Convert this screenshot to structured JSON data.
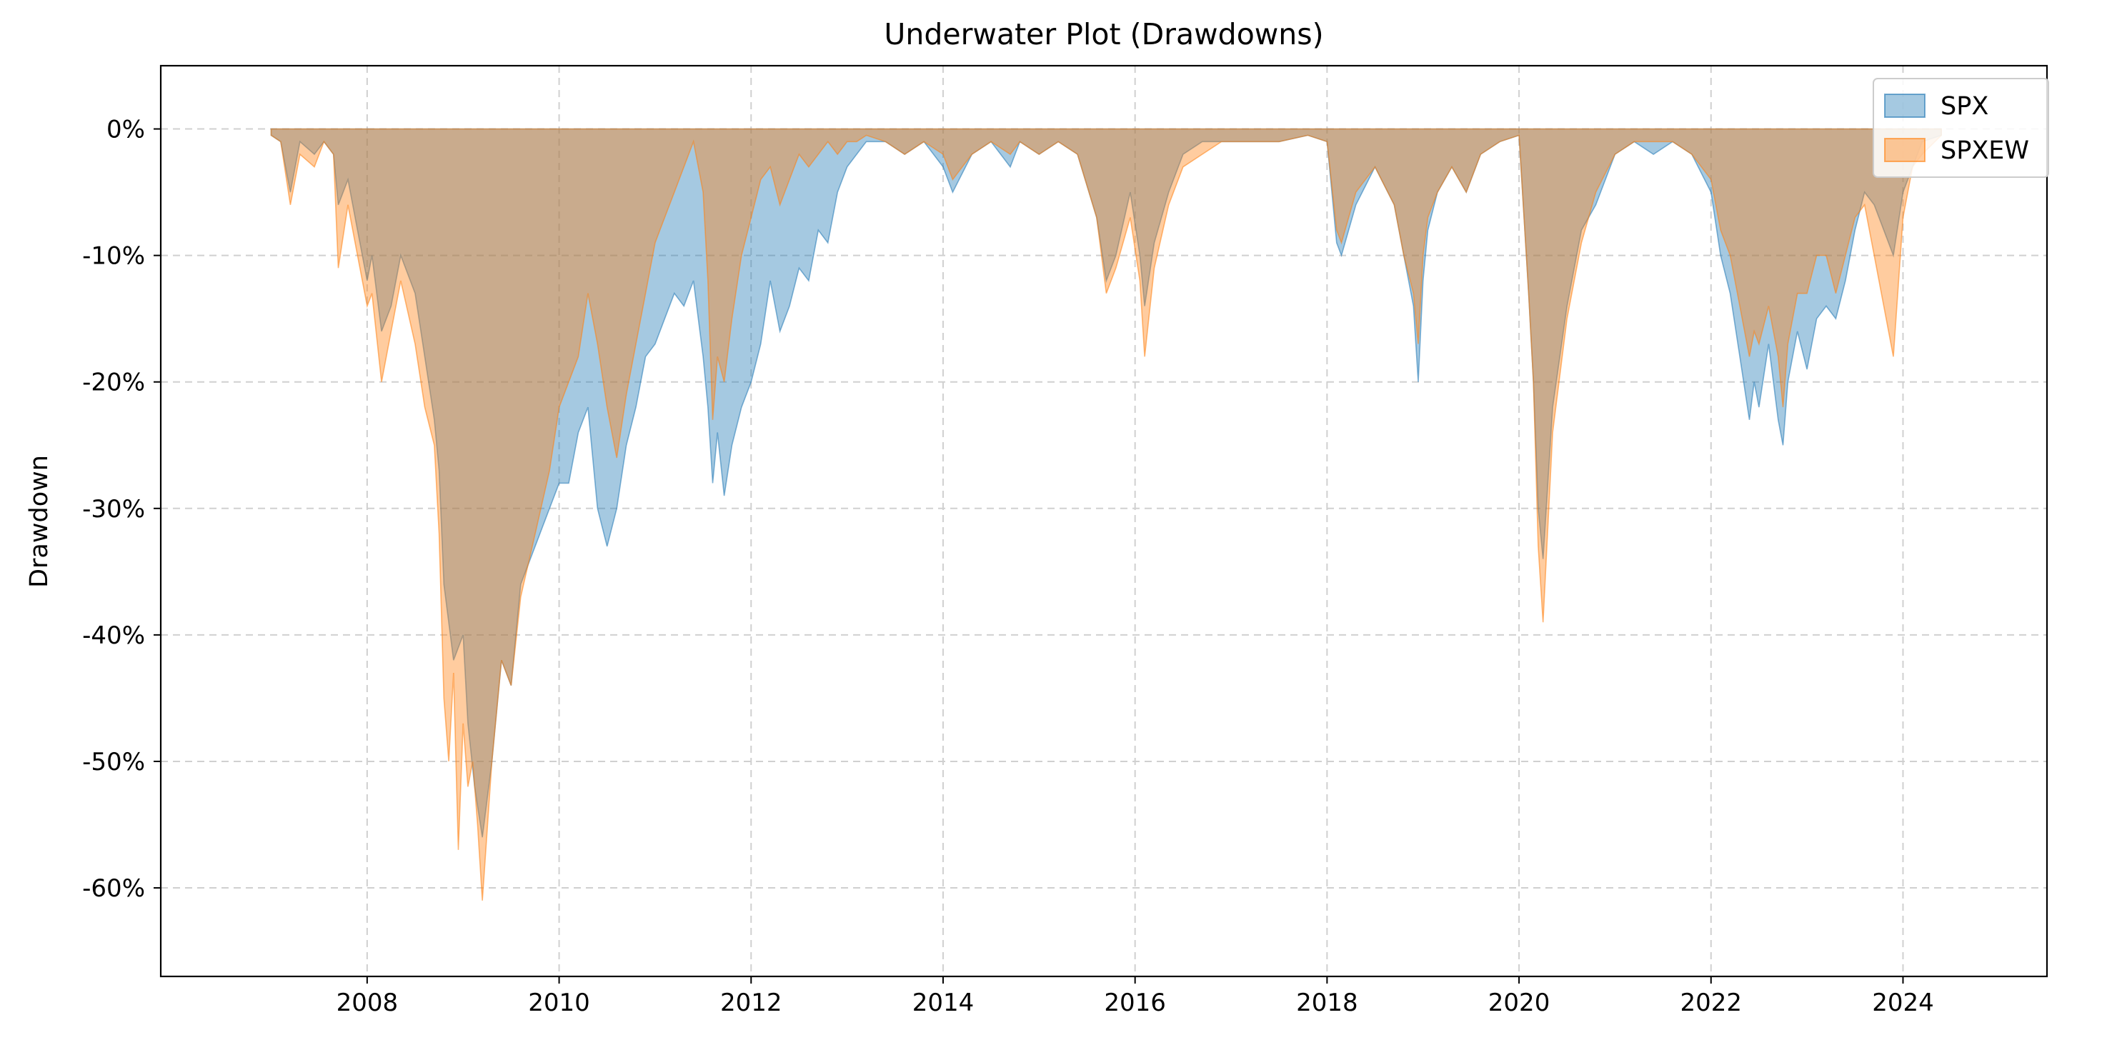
{
  "chart_data": {
    "type": "area",
    "title": "Underwater Plot (Drawdowns)",
    "xlabel": "",
    "ylabel": "Drawdown",
    "xlim": [
      2005.85,
      2025.5
    ],
    "ylim": [
      -0.67,
      0.05
    ],
    "x_ticks": [
      2008,
      2010,
      2012,
      2014,
      2016,
      2018,
      2020,
      2022,
      2024
    ],
    "x_tick_labels": [
      "2008",
      "2010",
      "2012",
      "2014",
      "2016",
      "2018",
      "2020",
      "2022",
      "2024"
    ],
    "y_ticks": [
      0,
      -0.1,
      -0.2,
      -0.3,
      -0.4,
      -0.5,
      -0.6
    ],
    "y_tick_labels": [
      "0%",
      "-10%",
      "-20%",
      "-30%",
      "-40%",
      "-50%",
      "-60%"
    ],
    "grid": true,
    "legend_position": "top-right",
    "series": [
      {
        "name": "SPX",
        "color": "#1f77b4",
        "x": [
          2007.0,
          2007.1,
          2007.2,
          2007.3,
          2007.45,
          2007.55,
          2007.65,
          2007.7,
          2007.8,
          2007.9,
          2008.0,
          2008.05,
          2008.15,
          2008.25,
          2008.35,
          2008.5,
          2008.6,
          2008.7,
          2008.75,
          2008.8,
          2008.9,
          2009.0,
          2009.05,
          2009.12,
          2009.2,
          2009.3,
          2009.4,
          2009.5,
          2009.6,
          2009.75,
          2009.9,
          2010.0,
          2010.1,
          2010.2,
          2010.3,
          2010.4,
          2010.5,
          2010.6,
          2010.7,
          2010.8,
          2010.9,
          2011.0,
          2011.1,
          2011.2,
          2011.3,
          2011.4,
          2011.5,
          2011.55,
          2011.6,
          2011.65,
          2011.72,
          2011.8,
          2011.9,
          2012.0,
          2012.1,
          2012.2,
          2012.3,
          2012.4,
          2012.5,
          2012.6,
          2012.7,
          2012.8,
          2012.9,
          2013.0,
          2013.1,
          2013.2,
          2013.4,
          2013.6,
          2013.8,
          2014.0,
          2014.1,
          2014.3,
          2014.5,
          2014.7,
          2014.8,
          2015.0,
          2015.2,
          2015.4,
          2015.6,
          2015.7,
          2015.8,
          2015.95,
          2016.05,
          2016.1,
          2016.2,
          2016.35,
          2016.5,
          2016.7,
          2016.9,
          2017.2,
          2017.5,
          2017.8,
          2018.0,
          2018.1,
          2018.15,
          2018.3,
          2018.5,
          2018.7,
          2018.8,
          2018.9,
          2018.95,
          2019.0,
          2019.05,
          2019.15,
          2019.3,
          2019.45,
          2019.6,
          2019.8,
          2020.0,
          2020.1,
          2020.15,
          2020.2,
          2020.25,
          2020.35,
          2020.5,
          2020.65,
          2020.8,
          2021.0,
          2021.2,
          2021.4,
          2021.6,
          2021.8,
          2022.0,
          2022.1,
          2022.2,
          2022.3,
          2022.4,
          2022.45,
          2022.5,
          2022.6,
          2022.7,
          2022.75,
          2022.8,
          2022.9,
          2023.0,
          2023.1,
          2023.2,
          2023.3,
          2023.4,
          2023.5,
          2023.6,
          2023.7,
          2023.8,
          2023.9,
          2024.0,
          2024.1,
          2024.2,
          2024.4
        ],
        "y": [
          -0.005,
          -0.01,
          -0.05,
          -0.01,
          -0.02,
          -0.01,
          -0.02,
          -0.06,
          -0.04,
          -0.08,
          -0.12,
          -0.1,
          -0.16,
          -0.14,
          -0.1,
          -0.13,
          -0.18,
          -0.23,
          -0.27,
          -0.36,
          -0.42,
          -0.4,
          -0.47,
          -0.52,
          -0.56,
          -0.5,
          -0.42,
          -0.44,
          -0.36,
          -0.33,
          -0.3,
          -0.28,
          -0.28,
          -0.24,
          -0.22,
          -0.3,
          -0.33,
          -0.3,
          -0.25,
          -0.22,
          -0.18,
          -0.17,
          -0.15,
          -0.13,
          -0.14,
          -0.12,
          -0.18,
          -0.22,
          -0.28,
          -0.24,
          -0.29,
          -0.25,
          -0.22,
          -0.2,
          -0.17,
          -0.12,
          -0.16,
          -0.14,
          -0.11,
          -0.12,
          -0.08,
          -0.09,
          -0.05,
          -0.03,
          -0.02,
          -0.01,
          -0.01,
          -0.02,
          -0.01,
          -0.03,
          -0.05,
          -0.02,
          -0.01,
          -0.03,
          -0.01,
          -0.02,
          -0.01,
          -0.02,
          -0.07,
          -0.12,
          -0.1,
          -0.05,
          -0.1,
          -0.14,
          -0.09,
          -0.05,
          -0.02,
          -0.01,
          -0.01,
          -0.01,
          -0.01,
          -0.005,
          -0.01,
          -0.09,
          -0.1,
          -0.06,
          -0.03,
          -0.06,
          -0.1,
          -0.14,
          -0.2,
          -0.12,
          -0.08,
          -0.05,
          -0.03,
          -0.05,
          -0.02,
          -0.01,
          -0.005,
          -0.13,
          -0.2,
          -0.3,
          -0.34,
          -0.22,
          -0.14,
          -0.08,
          -0.06,
          -0.02,
          -0.01,
          -0.02,
          -0.01,
          -0.02,
          -0.05,
          -0.1,
          -0.13,
          -0.18,
          -0.23,
          -0.2,
          -0.22,
          -0.17,
          -0.23,
          -0.25,
          -0.2,
          -0.16,
          -0.19,
          -0.15,
          -0.14,
          -0.15,
          -0.12,
          -0.08,
          -0.05,
          -0.06,
          -0.08,
          -0.1,
          -0.05,
          -0.03,
          -0.01,
          -0.005
        ],
        "legend_label": "SPX"
      },
      {
        "name": "SPXEW",
        "color": "#ff7f0e",
        "x": [
          2007.0,
          2007.1,
          2007.2,
          2007.3,
          2007.45,
          2007.55,
          2007.65,
          2007.7,
          2007.8,
          2007.9,
          2008.0,
          2008.05,
          2008.15,
          2008.25,
          2008.35,
          2008.5,
          2008.6,
          2008.7,
          2008.75,
          2008.8,
          2008.85,
          2008.9,
          2008.95,
          2009.0,
          2009.05,
          2009.1,
          2009.15,
          2009.2,
          2009.3,
          2009.4,
          2009.5,
          2009.6,
          2009.75,
          2009.9,
          2010.0,
          2010.1,
          2010.2,
          2010.3,
          2010.4,
          2010.5,
          2010.6,
          2010.7,
          2010.8,
          2010.9,
          2011.0,
          2011.1,
          2011.2,
          2011.3,
          2011.4,
          2011.5,
          2011.55,
          2011.6,
          2011.65,
          2011.72,
          2011.8,
          2011.9,
          2012.0,
          2012.1,
          2012.2,
          2012.3,
          2012.4,
          2012.5,
          2012.6,
          2012.7,
          2012.8,
          2012.9,
          2013.0,
          2013.1,
          2013.2,
          2013.4,
          2013.6,
          2013.8,
          2014.0,
          2014.1,
          2014.3,
          2014.5,
          2014.7,
          2014.8,
          2015.0,
          2015.2,
          2015.4,
          2015.6,
          2015.7,
          2015.8,
          2015.95,
          2016.05,
          2016.1,
          2016.2,
          2016.35,
          2016.5,
          2016.7,
          2016.9,
          2017.2,
          2017.5,
          2017.8,
          2018.0,
          2018.1,
          2018.15,
          2018.3,
          2018.5,
          2018.7,
          2018.8,
          2018.9,
          2018.95,
          2019.0,
          2019.05,
          2019.15,
          2019.3,
          2019.45,
          2019.6,
          2019.8,
          2020.0,
          2020.1,
          2020.15,
          2020.2,
          2020.25,
          2020.35,
          2020.5,
          2020.65,
          2020.8,
          2021.0,
          2021.2,
          2021.4,
          2021.6,
          2021.8,
          2022.0,
          2022.1,
          2022.2,
          2022.3,
          2022.4,
          2022.45,
          2022.5,
          2022.6,
          2022.7,
          2022.75,
          2022.8,
          2022.9,
          2023.0,
          2023.1,
          2023.2,
          2023.3,
          2023.4,
          2023.5,
          2023.6,
          2023.7,
          2023.8,
          2023.9,
          2024.0,
          2024.1,
          2024.2,
          2024.4
        ],
        "y": [
          -0.005,
          -0.01,
          -0.06,
          -0.02,
          -0.03,
          -0.01,
          -0.02,
          -0.11,
          -0.06,
          -0.1,
          -0.14,
          -0.13,
          -0.2,
          -0.16,
          -0.12,
          -0.17,
          -0.22,
          -0.25,
          -0.32,
          -0.45,
          -0.5,
          -0.43,
          -0.57,
          -0.47,
          -0.52,
          -0.5,
          -0.55,
          -0.61,
          -0.5,
          -0.42,
          -0.44,
          -0.37,
          -0.32,
          -0.27,
          -0.22,
          -0.2,
          -0.18,
          -0.13,
          -0.17,
          -0.22,
          -0.26,
          -0.21,
          -0.17,
          -0.13,
          -0.09,
          -0.07,
          -0.05,
          -0.03,
          -0.01,
          -0.05,
          -0.12,
          -0.23,
          -0.18,
          -0.2,
          -0.15,
          -0.1,
          -0.07,
          -0.04,
          -0.03,
          -0.06,
          -0.04,
          -0.02,
          -0.03,
          -0.02,
          -0.01,
          -0.02,
          -0.01,
          -0.01,
          -0.005,
          -0.01,
          -0.02,
          -0.01,
          -0.02,
          -0.04,
          -0.02,
          -0.01,
          -0.02,
          -0.01,
          -0.02,
          -0.01,
          -0.02,
          -0.07,
          -0.13,
          -0.11,
          -0.07,
          -0.12,
          -0.18,
          -0.11,
          -0.06,
          -0.03,
          -0.02,
          -0.01,
          -0.01,
          -0.01,
          -0.005,
          -0.01,
          -0.08,
          -0.09,
          -0.05,
          -0.03,
          -0.06,
          -0.1,
          -0.13,
          -0.17,
          -0.1,
          -0.07,
          -0.05,
          -0.03,
          -0.05,
          -0.02,
          -0.01,
          -0.005,
          -0.13,
          -0.2,
          -0.33,
          -0.39,
          -0.24,
          -0.15,
          -0.09,
          -0.05,
          -0.02,
          -0.01,
          -0.01,
          -0.01,
          -0.02,
          -0.04,
          -0.08,
          -0.1,
          -0.14,
          -0.18,
          -0.16,
          -0.17,
          -0.14,
          -0.18,
          -0.22,
          -0.17,
          -0.13,
          -0.13,
          -0.1,
          -0.1,
          -0.13,
          -0.1,
          -0.07,
          -0.06,
          -0.1,
          -0.14,
          -0.18,
          -0.07,
          -0.03,
          -0.02,
          -0.005
        ],
        "legend_label": "SPXEW"
      }
    ]
  }
}
